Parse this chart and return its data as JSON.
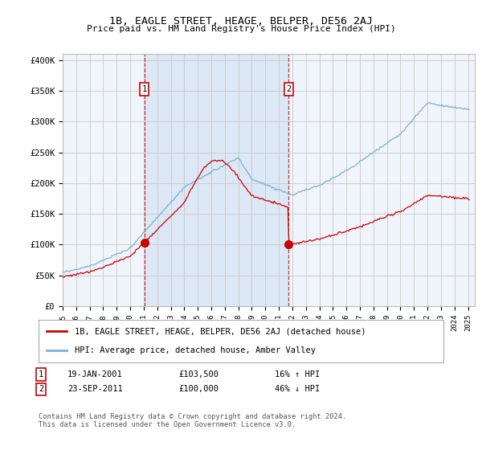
{
  "title": "1B, EAGLE STREET, HEAGE, BELPER, DE56 2AJ",
  "subtitle": "Price paid vs. HM Land Registry's House Price Index (HPI)",
  "ylabel_ticks": [
    "£0",
    "£50K",
    "£100K",
    "£150K",
    "£200K",
    "£250K",
    "£300K",
    "£350K",
    "£400K"
  ],
  "ytick_vals": [
    0,
    50000,
    100000,
    150000,
    200000,
    250000,
    300000,
    350000,
    400000
  ],
  "ylim": [
    0,
    410000
  ],
  "xlim_start": 1995.3,
  "xlim_end": 2025.5,
  "sale1_time": 2001.05,
  "sale1_price": 103500,
  "sale1_label": "1",
  "sale1_date_str": "19-JAN-2001",
  "sale1_hpi_pct": "16% ↑ HPI",
  "sale1_price_str": "£103,500",
  "sale2_time": 2011.73,
  "sale2_price": 100000,
  "sale2_label": "2",
  "sale2_date_str": "23-SEP-2011",
  "sale2_hpi_pct": "46% ↓ HPI",
  "sale2_price_str": "£100,000",
  "line1_color": "#cc0000",
  "line2_color": "#7ab0d4",
  "fill_color": "#dce8f5",
  "grid_color": "#cccccc",
  "plot_bg": "#f0f5fb",
  "legend_line1": "1B, EAGLE STREET, HEAGE, BELPER, DE56 2AJ (detached house)",
  "legend_line2": "HPI: Average price, detached house, Amber Valley",
  "footer": "Contains HM Land Registry data © Crown copyright and database right 2024.\nThis data is licensed under the Open Government Licence v3.0.",
  "xtick_years": [
    1995,
    1996,
    1997,
    1998,
    1999,
    2000,
    2001,
    2002,
    2003,
    2004,
    2005,
    2006,
    2007,
    2008,
    2009,
    2010,
    2011,
    2012,
    2013,
    2014,
    2015,
    2016,
    2017,
    2018,
    2019,
    2020,
    2021,
    2022,
    2023,
    2024,
    2025
  ]
}
